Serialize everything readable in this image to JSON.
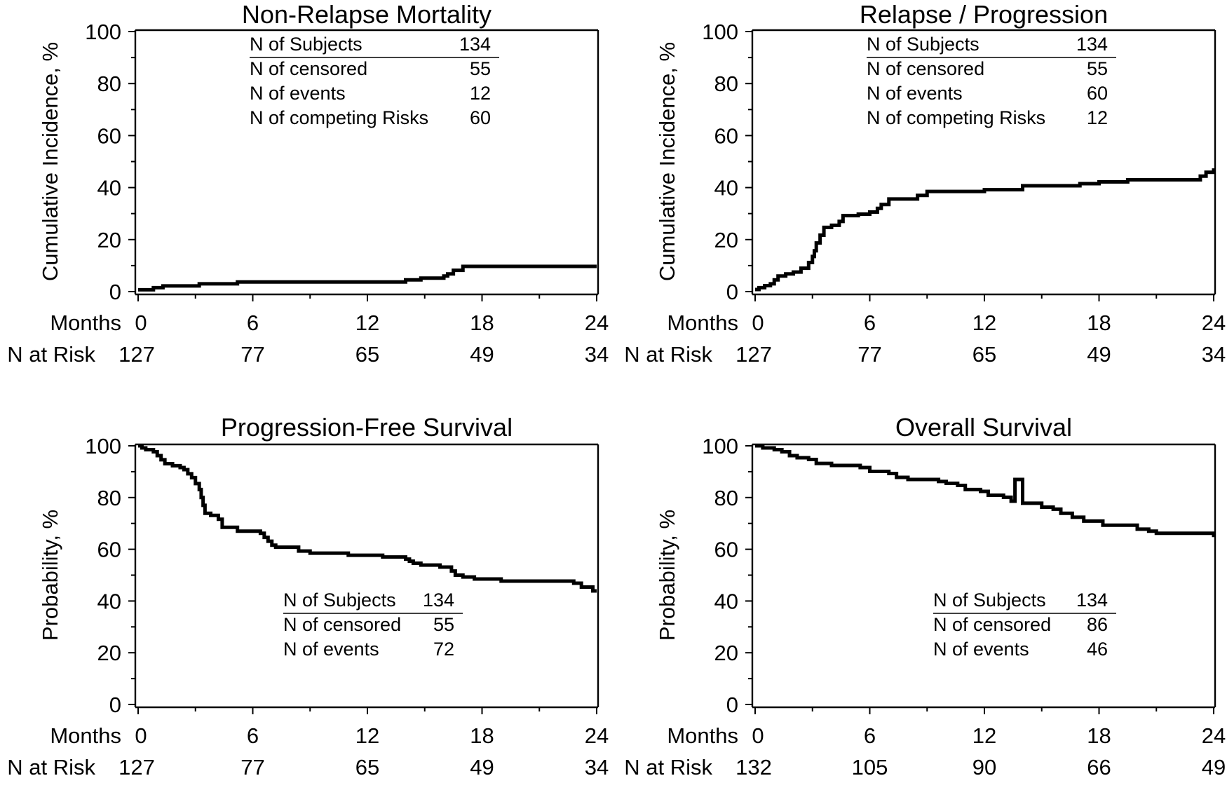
{
  "chart_data": [
    {
      "type": "line",
      "title": "Non-Relapse Mortality",
      "ylabel": "Cumulative Incidence, %",
      "xlabel": "Months",
      "ylim": [
        0,
        100
      ],
      "yticks": [
        "0",
        "20",
        "40",
        "60",
        "80",
        "100"
      ],
      "xticks": [
        "0",
        "6",
        "12",
        "18",
        "24"
      ],
      "at_risk_label": "N at Risk",
      "at_risk": [
        "127",
        "77",
        "65",
        "49",
        "34"
      ],
      "stats": [
        {
          "label": "N of Subjects",
          "value": "134"
        },
        {
          "label": "N of censored",
          "value": "55"
        },
        {
          "label": "N of events",
          "value": "12"
        },
        {
          "label": "N of competing Risks",
          "value": "60"
        }
      ],
      "step_points": [
        [
          0,
          0.7
        ],
        [
          0.8,
          1.5
        ],
        [
          1.3,
          2.2
        ],
        [
          3.2,
          3.0
        ],
        [
          5.2,
          3.7
        ],
        [
          14,
          3.7
        ],
        [
          14,
          4.5
        ],
        [
          14.8,
          5.2
        ],
        [
          16,
          6
        ],
        [
          16.2,
          6.8
        ],
        [
          16.5,
          8.2
        ],
        [
          17,
          9.7
        ],
        [
          24,
          9.7
        ]
      ]
    },
    {
      "type": "line",
      "title": "Relapse / Progression",
      "ylabel": "Cumulative Incidence, %",
      "xlabel": "Months",
      "ylim": [
        0,
        100
      ],
      "yticks": [
        "0",
        "20",
        "40",
        "60",
        "80",
        "100"
      ],
      "xticks": [
        "0",
        "6",
        "12",
        "18",
        "24"
      ],
      "at_risk_label": "N at Risk",
      "at_risk": [
        "127",
        "77",
        "65",
        "49",
        "34"
      ],
      "stats": [
        {
          "label": "N of Subjects",
          "value": "134"
        },
        {
          "label": "N of censored",
          "value": "55"
        },
        {
          "label": "N of events",
          "value": "60"
        },
        {
          "label": "N of competing Risks",
          "value": "12"
        }
      ],
      "step_points": [
        [
          0,
          0.8
        ],
        [
          0.2,
          1.5
        ],
        [
          0.5,
          2.3
        ],
        [
          0.8,
          3
        ],
        [
          1,
          4.5
        ],
        [
          1.2,
          6
        ],
        [
          1.6,
          6.8
        ],
        [
          2,
          7.5
        ],
        [
          2.4,
          9
        ],
        [
          2.8,
          11.2
        ],
        [
          3,
          13.5
        ],
        [
          3.1,
          15.7
        ],
        [
          3.2,
          18.7
        ],
        [
          3.4,
          21.7
        ],
        [
          3.6,
          24.7
        ],
        [
          4,
          25.5
        ],
        [
          4.4,
          27
        ],
        [
          4.6,
          29.2
        ],
        [
          5.4,
          29.8
        ],
        [
          6,
          30.6
        ],
        [
          6.4,
          32
        ],
        [
          6.6,
          33.5
        ],
        [
          7,
          35.6
        ],
        [
          8.5,
          37
        ],
        [
          9,
          38.5
        ],
        [
          12,
          39.2
        ],
        [
          14,
          40.7
        ],
        [
          17,
          41.5
        ],
        [
          18,
          42.2
        ],
        [
          19.5,
          43
        ],
        [
          23,
          43
        ],
        [
          23.3,
          44.4
        ],
        [
          23.6,
          45.9
        ],
        [
          24,
          47.4
        ]
      ]
    },
    {
      "type": "line",
      "title": "Progression-Free Survival",
      "ylabel": "Probability, %",
      "xlabel": "Months",
      "ylim": [
        0,
        100
      ],
      "yticks": [
        "0",
        "20",
        "40",
        "60",
        "80",
        "100"
      ],
      "xticks": [
        "0",
        "6",
        "12",
        "18",
        "24"
      ],
      "at_risk_label": "N at Risk",
      "at_risk": [
        "127",
        "77",
        "65",
        "49",
        "34"
      ],
      "stats": [
        {
          "label": "N of Subjects",
          "value": "134"
        },
        {
          "label": "N of censored",
          "value": "55"
        },
        {
          "label": "N of events",
          "value": "72"
        }
      ],
      "step_points": [
        [
          0,
          100
        ],
        [
          0.2,
          99.2
        ],
        [
          0.4,
          98.5
        ],
        [
          0.8,
          97.7
        ],
        [
          1,
          96.2
        ],
        [
          1.2,
          94.6
        ],
        [
          1.4,
          93.1
        ],
        [
          1.8,
          92.3
        ],
        [
          2.2,
          91.6
        ],
        [
          2.4,
          90.8
        ],
        [
          2.6,
          89.2
        ],
        [
          2.8,
          87.7
        ],
        [
          3,
          85.4
        ],
        [
          3.2,
          83.1
        ],
        [
          3.3,
          80
        ],
        [
          3.4,
          77
        ],
        [
          3.5,
          73.9
        ],
        [
          3.8,
          73.1
        ],
        [
          4.2,
          71.6
        ],
        [
          4.4,
          68.5
        ],
        [
          5.2,
          67
        ],
        [
          6.4,
          66.2
        ],
        [
          6.6,
          64.6
        ],
        [
          6.8,
          63.1
        ],
        [
          7,
          61.6
        ],
        [
          7.2,
          60.8
        ],
        [
          8.4,
          59.3
        ],
        [
          9,
          58.5
        ],
        [
          11,
          57.7
        ],
        [
          12.8,
          57
        ],
        [
          14,
          56.2
        ],
        [
          14.2,
          55.4
        ],
        [
          14.4,
          54.6
        ],
        [
          14.8,
          53.9
        ],
        [
          15.8,
          53.1
        ],
        [
          16.4,
          51.6
        ],
        [
          16.6,
          50
        ],
        [
          17,
          49.3
        ],
        [
          17.6,
          48.5
        ],
        [
          19,
          47.7
        ],
        [
          22.6,
          47.7
        ],
        [
          22.8,
          46.9
        ],
        [
          23.2,
          45.4
        ],
        [
          23.8,
          43.9
        ],
        [
          24,
          43.9
        ]
      ]
    },
    {
      "type": "line",
      "title": "Overall Survival",
      "ylabel": "Probability, %",
      "xlabel": "Months",
      "ylim": [
        0,
        100
      ],
      "yticks": [
        "0",
        "20",
        "40",
        "60",
        "80",
        "100"
      ],
      "xticks": [
        "0",
        "6",
        "12",
        "18",
        "24"
      ],
      "at_risk_label": "N at Risk",
      "at_risk": [
        "132",
        "105",
        "90",
        "66",
        "49"
      ],
      "stats": [
        {
          "label": "N of Subjects",
          "value": "134"
        },
        {
          "label": "N of censored",
          "value": "86"
        },
        {
          "label": "N of events",
          "value": "46"
        }
      ],
      "step_points": [
        [
          0,
          100
        ],
        [
          0.4,
          99.2
        ],
        [
          1,
          98.5
        ],
        [
          1.4,
          97.7
        ],
        [
          1.8,
          96.2
        ],
        [
          2.2,
          95.4
        ],
        [
          2.8,
          94.7
        ],
        [
          3.2,
          93.2
        ],
        [
          4,
          92.4
        ],
        [
          5.5,
          91.6
        ],
        [
          6,
          90.1
        ],
        [
          7,
          89.3
        ],
        [
          7.4,
          87.8
        ],
        [
          8,
          87
        ],
        [
          13.6,
          87
        ],
        [
          9.4,
          87
        ],
        [
          9.6,
          86.2
        ],
        [
          10,
          85.5
        ],
        [
          10.6,
          84.7
        ],
        [
          11,
          83.1
        ],
        [
          11.8,
          82.4
        ],
        [
          12.2,
          80.9
        ],
        [
          13,
          80.1
        ],
        [
          13.4,
          78.6
        ],
        [
          14,
          77.8
        ],
        [
          15,
          76.3
        ],
        [
          15.6,
          75.5
        ],
        [
          16,
          73.9
        ],
        [
          16.6,
          72.4
        ],
        [
          17.2,
          70.9
        ],
        [
          18.2,
          69.3
        ],
        [
          19.6,
          69.3
        ],
        [
          20,
          67.8
        ],
        [
          20.6,
          67
        ],
        [
          21,
          66.2
        ],
        [
          24,
          66.2
        ],
        [
          24,
          64.7
        ]
      ]
    }
  ]
}
